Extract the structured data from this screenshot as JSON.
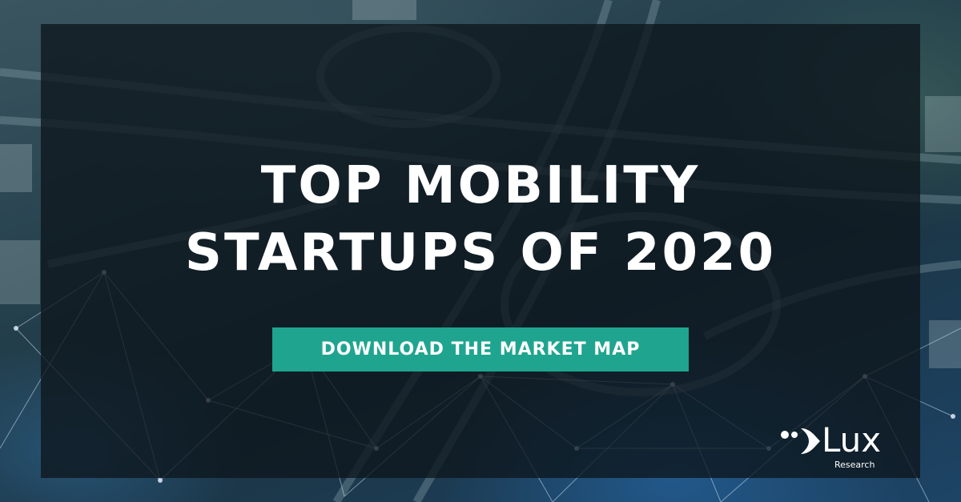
{
  "headline": {
    "line1": "TOP MOBILITY",
    "line2": "STARTUPS OF 2020"
  },
  "cta": {
    "label": "DOWNLOAD THE MARKET MAP"
  },
  "logo": {
    "name": "Lux",
    "tagline": "Research"
  },
  "colors": {
    "cta_background": "#1fa58f",
    "overlay": "#0d161c",
    "text": "#ffffff"
  },
  "icons": [
    "network-mesh-icon",
    "lux-logo-mark-icon"
  ]
}
